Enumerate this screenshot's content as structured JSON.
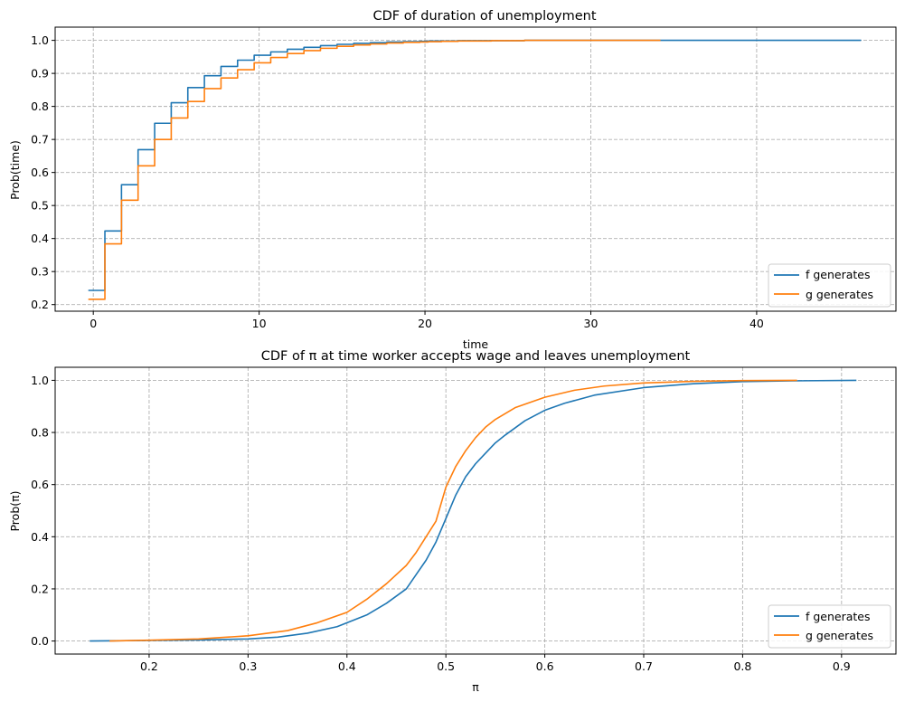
{
  "chart_data": [
    {
      "type": "line",
      "title": "CDF of duration of unemployment",
      "xlabel": "time",
      "ylabel": "Prob(time)",
      "xlim": [
        -2.3,
        48.4
      ],
      "ylim": [
        0.18,
        1.04
      ],
      "xticks": [
        0,
        10,
        20,
        30,
        40
      ],
      "xtick_labels": [
        "0",
        "10",
        "20",
        "30",
        "40"
      ],
      "yticks": [
        0.2,
        0.3,
        0.4,
        0.5,
        0.6,
        0.7,
        0.8,
        0.9,
        1.0
      ],
      "ytick_labels": [
        "0.2",
        "0.3",
        "0.4",
        "0.5",
        "0.6",
        "0.7",
        "0.8",
        "0.9",
        "1.0"
      ],
      "grid": true,
      "legend": "lower-right",
      "series": [
        {
          "name": "f generates",
          "color": "#1f77b4",
          "style": "step",
          "x": [
            -0.3,
            0.2,
            0.7,
            1.2,
            1.7,
            2.2,
            2.7,
            3.2,
            3.7,
            4.2,
            4.7,
            5.2,
            5.7,
            6.2,
            6.7,
            7.2,
            7.7,
            8.2,
            8.7,
            9.2,
            9.7,
            10.2,
            10.7,
            11.2,
            11.7,
            12.2,
            12.7,
            13.2,
            13.7,
            14.2,
            14.7,
            15.2,
            15.7,
            16.2,
            16.7,
            17.2,
            17.7,
            18.2,
            18.7,
            19.2,
            19.7,
            20.2,
            21.0,
            22.0,
            24.0,
            26.0,
            30.0,
            46.3
          ],
          "y": [
            0.243,
            0.243,
            0.423,
            0.423,
            0.563,
            0.563,
            0.669,
            0.669,
            0.749,
            0.749,
            0.811,
            0.811,
            0.857,
            0.857,
            0.893,
            0.893,
            0.921,
            0.921,
            0.94,
            0.94,
            0.955,
            0.955,
            0.965,
            0.965,
            0.973,
            0.973,
            0.979,
            0.979,
            0.984,
            0.984,
            0.988,
            0.988,
            0.991,
            0.991,
            0.993,
            0.993,
            0.995,
            0.995,
            0.996,
            0.996,
            0.997,
            0.998,
            0.998,
            0.999,
            0.999,
            1.0,
            1.0,
            1.0
          ]
        },
        {
          "name": "g generates",
          "color": "#ff7f0e",
          "style": "step",
          "x": [
            -0.3,
            0.2,
            0.7,
            1.2,
            1.7,
            2.2,
            2.7,
            3.2,
            3.7,
            4.2,
            4.7,
            5.2,
            5.7,
            6.2,
            6.7,
            7.2,
            7.7,
            8.2,
            8.7,
            9.2,
            9.7,
            10.2,
            10.7,
            11.2,
            11.7,
            12.2,
            12.7,
            13.2,
            13.7,
            14.2,
            14.7,
            15.2,
            15.7,
            16.2,
            16.7,
            17.2,
            17.7,
            18.2,
            18.7,
            19.2,
            19.7,
            20.2,
            21.0,
            22.0,
            24.0,
            26.0,
            30.0,
            34.2
          ],
          "y": [
            0.216,
            0.216,
            0.384,
            0.384,
            0.516,
            0.516,
            0.62,
            0.62,
            0.7,
            0.7,
            0.765,
            0.765,
            0.815,
            0.815,
            0.854,
            0.854,
            0.886,
            0.886,
            0.911,
            0.911,
            0.932,
            0.932,
            0.948,
            0.948,
            0.96,
            0.96,
            0.969,
            0.969,
            0.976,
            0.976,
            0.982,
            0.982,
            0.986,
            0.986,
            0.989,
            0.989,
            0.992,
            0.992,
            0.994,
            0.994,
            0.995,
            0.996,
            0.997,
            0.998,
            0.999,
            1.0,
            1.0,
            1.0
          ]
        }
      ]
    },
    {
      "type": "line",
      "title": "CDF of π at time worker accepts wage and leaves unemployment",
      "xlabel": "π",
      "ylabel": "Prob(π)",
      "xlim": [
        0.105,
        0.955
      ],
      "ylim": [
        -0.05,
        1.05
      ],
      "xticks": [
        0.2,
        0.3,
        0.4,
        0.5,
        0.6,
        0.7,
        0.8,
        0.9
      ],
      "xtick_labels": [
        "0.2",
        "0.3",
        "0.4",
        "0.5",
        "0.6",
        "0.7",
        "0.8",
        "0.9"
      ],
      "yticks": [
        0.0,
        0.2,
        0.4,
        0.6,
        0.8,
        1.0
      ],
      "ytick_labels": [
        "0.0",
        "0.2",
        "0.4",
        "0.6",
        "0.8",
        "1.0"
      ],
      "grid": true,
      "legend": "lower-right",
      "series": [
        {
          "name": "f generates",
          "color": "#1f77b4",
          "style": "line",
          "x": [
            0.14,
            0.2,
            0.25,
            0.3,
            0.33,
            0.36,
            0.39,
            0.42,
            0.44,
            0.46,
            0.47,
            0.48,
            0.49,
            0.5,
            0.51,
            0.52,
            0.53,
            0.54,
            0.55,
            0.56,
            0.58,
            0.6,
            0.62,
            0.65,
            0.7,
            0.75,
            0.8,
            0.85,
            0.915
          ],
          "y": [
            0.0,
            0.002,
            0.004,
            0.008,
            0.015,
            0.03,
            0.055,
            0.1,
            0.145,
            0.2,
            0.255,
            0.31,
            0.38,
            0.47,
            0.56,
            0.63,
            0.68,
            0.72,
            0.76,
            0.79,
            0.845,
            0.885,
            0.912,
            0.943,
            0.972,
            0.987,
            0.995,
            0.998,
            1.0
          ]
        },
        {
          "name": "g generates",
          "color": "#ff7f0e",
          "style": "line",
          "x": [
            0.16,
            0.2,
            0.25,
            0.3,
            0.34,
            0.37,
            0.4,
            0.42,
            0.44,
            0.46,
            0.47,
            0.48,
            0.49,
            0.5,
            0.51,
            0.52,
            0.53,
            0.54,
            0.55,
            0.57,
            0.6,
            0.63,
            0.66,
            0.7,
            0.75,
            0.8,
            0.855
          ],
          "y": [
            0.0,
            0.003,
            0.008,
            0.02,
            0.04,
            0.07,
            0.11,
            0.16,
            0.22,
            0.29,
            0.34,
            0.4,
            0.46,
            0.59,
            0.67,
            0.73,
            0.78,
            0.82,
            0.85,
            0.895,
            0.935,
            0.962,
            0.978,
            0.99,
            0.996,
            0.999,
            1.0
          ]
        }
      ]
    }
  ]
}
